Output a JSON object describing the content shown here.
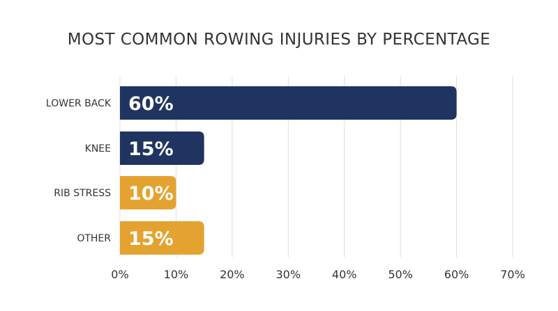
{
  "title": "MOST COMMON ROWING INJURIES BY PERCENTAGE",
  "chart_data": {
    "type": "bar",
    "orientation": "horizontal",
    "title": "MOST COMMON ROWING INJURIES BY PERCENTAGE",
    "categories": [
      "LOWER BACK",
      "KNEE",
      "RIB STRESS",
      "OTHER"
    ],
    "values": [
      60,
      15,
      10,
      15
    ],
    "data_labels": [
      "60%",
      "15%",
      "10%",
      "15%"
    ],
    "bar_colors": [
      "#1f3460",
      "#1f3460",
      "#e4a330",
      "#e4a330"
    ],
    "xlim": [
      0,
      70
    ],
    "xticks": [
      0,
      10,
      20,
      30,
      40,
      50,
      60,
      70
    ],
    "xtick_labels": [
      "0%",
      "10%",
      "20%",
      "30%",
      "40%",
      "50%",
      "60%",
      "70%"
    ],
    "xlabel": "",
    "ylabel": "",
    "grid": "vertical",
    "legend": "none"
  },
  "colors": {
    "navy": "#1f3460",
    "gold": "#e4a330",
    "gridline": "#dddddd"
  }
}
